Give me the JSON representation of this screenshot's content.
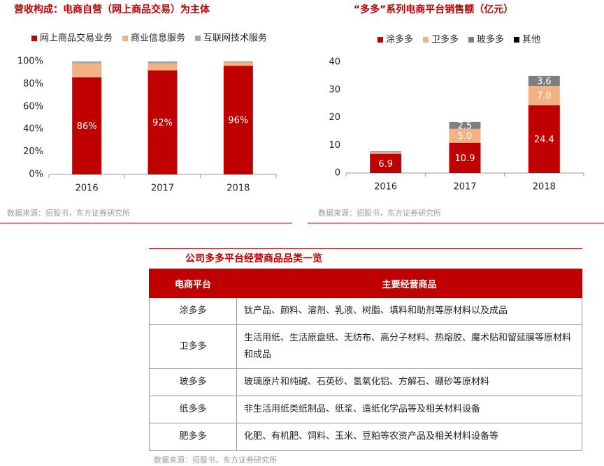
{
  "chart_data": [
    {
      "type": "bar",
      "stacked": true,
      "title": "营收构成：电商自营（网上商品交易）为主体",
      "categories": [
        "2016",
        "2017",
        "2018"
      ],
      "series": [
        {
          "name": "网上商品交易业务",
          "color": "#c00000",
          "values": [
            86,
            92,
            96
          ],
          "value_labels": [
            "86%",
            "92%",
            "96%"
          ]
        },
        {
          "name": "商业信息服务",
          "color": "#f4b183",
          "values": [
            12,
            6,
            3
          ]
        },
        {
          "name": "互联网技术服务",
          "color": "#a6a6a6",
          "values": [
            2,
            2,
            1
          ]
        }
      ],
      "ylim": [
        0,
        100
      ],
      "yticks": [
        {
          "value": 0,
          "label": "0%"
        },
        {
          "value": 20,
          "label": "20%"
        },
        {
          "value": 40,
          "label": "40%"
        },
        {
          "value": 60,
          "label": "60%"
        },
        {
          "value": 80,
          "label": "80%"
        },
        {
          "value": 100,
          "label": "100%"
        }
      ],
      "grid": false,
      "source": "数据来源：招股书，东方证券研究所"
    },
    {
      "type": "bar",
      "stacked": true,
      "title": "“多多”系列电商平台销售额（亿元）",
      "categories": [
        "2016",
        "2017",
        "2018"
      ],
      "series": [
        {
          "name": "涂多多",
          "color": "#c00000",
          "values": [
            6.9,
            10.9,
            24.4
          ],
          "value_labels": [
            "6.9",
            "10.9",
            "24.4"
          ]
        },
        {
          "name": "卫多多",
          "color": "#f4b183",
          "values": [
            0.6,
            5.0,
            7.0
          ],
          "value_labels": [
            null,
            "5.0",
            "7.0"
          ]
        },
        {
          "name": "玻多多",
          "color": "#7f7f7f",
          "values": [
            0.3,
            2.5,
            3.6
          ],
          "value_labels": [
            null,
            "2.5",
            "3.6"
          ]
        },
        {
          "name": "其他",
          "color": "#000000",
          "values": [
            0,
            0,
            0
          ]
        }
      ],
      "ylim": [
        0,
        40
      ],
      "yticks": [
        0,
        10,
        20,
        30,
        40
      ],
      "grid": false,
      "source": "数据来源：招股书，东方证券研究所"
    }
  ],
  "table": {
    "title": "公司多多平台经营商品品类一览",
    "header": [
      "电商平台",
      "主要经营商品"
    ],
    "rows": [
      [
        "涂多多",
        "钛产品、颜料、溶剂、乳液、树脂、填料和助剂等原材料以及成品"
      ],
      [
        "卫多多",
        "生活用纸、生活原盘纸、无纺布、高分子材料、热熔胶、魔术贴和留延膜等原材料和成品"
      ],
      [
        "玻多多",
        "玻璃原片和纯碱、石英砂、氢氧化铝、方解石、硼砂等原材料"
      ],
      [
        "纸多多",
        "非生活用纸类纸制品、纸浆、造纸化学品等及相关材料设备"
      ],
      [
        "肥多多",
        "化肥、有机肥、饲料、玉米、豆粕等农资产品及相关材料设备等"
      ]
    ],
    "source": "数据来源：招股书，东方证券研究所"
  }
}
